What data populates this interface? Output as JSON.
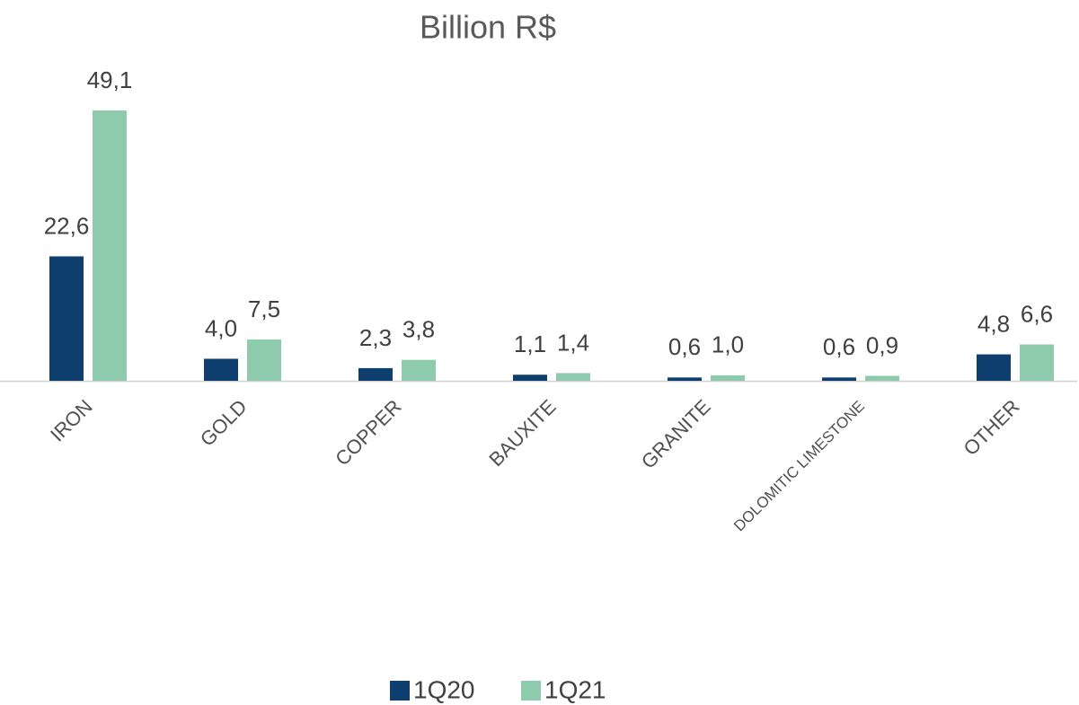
{
  "chart_data": {
    "type": "bar",
    "title": "Billion R$",
    "categories": [
      "IRON",
      "GOLD",
      "COPPER",
      "BAUXITE",
      "GRANITE",
      "DOLOMITIC LIMESTONE",
      "OTHER"
    ],
    "series": [
      {
        "name": "1Q20",
        "color": "#0f3f6e",
        "values": [
          22.6,
          4.0,
          2.3,
          1.1,
          0.6,
          0.6,
          4.8
        ],
        "value_labels": [
          "22,6",
          "4,0",
          "2,3",
          "1,1",
          "0,6",
          "0,6",
          "4,8"
        ]
      },
      {
        "name": "1Q21",
        "color": "#8ecbac",
        "values": [
          49.1,
          7.5,
          3.8,
          1.4,
          1.0,
          0.9,
          6.6
        ],
        "value_labels": [
          "49,1",
          "7,5",
          "3,8",
          "1,4",
          "1,0",
          "0,9",
          "6,6"
        ]
      }
    ],
    "legend": "bottom"
  }
}
